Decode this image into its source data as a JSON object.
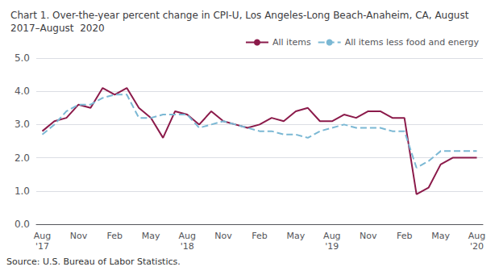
{
  "chart_data": {
    "type": "line",
    "title": "Chart 1. Over-the-year percent change in CPI-U, Los Angeles-Long Beach-Anaheim, CA, August\n2017–August  2020",
    "annotations": [
      "Source: U.S. Bureau of Labor Statistics."
    ],
    "categories": [
      "Aug\n'17",
      null,
      null,
      "Nov",
      null,
      null,
      "Feb",
      null,
      null,
      "May",
      null,
      null,
      "Aug\n'18",
      null,
      null,
      "Nov",
      null,
      null,
      "Feb",
      null,
      null,
      "May",
      null,
      null,
      "Aug\n'19",
      null,
      null,
      "Nov",
      null,
      null,
      "Feb",
      null,
      null,
      "May",
      null,
      null,
      "Aug\n'20"
    ],
    "series": [
      {
        "name": "All items",
        "color": "#8B1A4A",
        "line_style": "solid",
        "values": [
          2.8,
          3.1,
          3.2,
          3.6,
          3.5,
          4.1,
          3.9,
          4.1,
          3.5,
          3.2,
          2.6,
          3.4,
          3.3,
          3.0,
          3.4,
          3.1,
          3.0,
          2.9,
          3.0,
          3.2,
          3.1,
          3.4,
          3.5,
          3.1,
          3.1,
          3.3,
          3.2,
          3.4,
          3.4,
          3.2,
          3.2,
          0.9,
          1.1,
          1.8,
          2.0,
          2.0,
          2.0
        ]
      },
      {
        "name": "All items less food and energy",
        "color": "#7BB8D4",
        "line_style": "dashed",
        "values": [
          2.7,
          3.0,
          3.4,
          3.6,
          3.6,
          3.8,
          3.9,
          3.9,
          3.2,
          3.2,
          3.3,
          3.3,
          3.3,
          2.9,
          3.0,
          3.1,
          3.0,
          2.9,
          2.8,
          2.8,
          2.7,
          2.7,
          2.6,
          2.8,
          2.9,
          3.0,
          2.9,
          2.9,
          2.9,
          2.8,
          2.8,
          1.7,
          1.9,
          2.2,
          2.2,
          2.2,
          2.2
        ]
      }
    ],
    "ylim": [
      0.0,
      5.0
    ],
    "yticks": [
      {
        "value": 0.0,
        "label": "0.0"
      },
      {
        "value": 1.0,
        "label": "1.0"
      },
      {
        "value": 2.0,
        "label": "2.0"
      },
      {
        "value": 3.0,
        "label": "3.0"
      },
      {
        "value": 4.0,
        "label": "4.0"
      },
      {
        "value": 5.0,
        "label": "5.0"
      }
    ],
    "grid": true,
    "legend": "upper right"
  }
}
